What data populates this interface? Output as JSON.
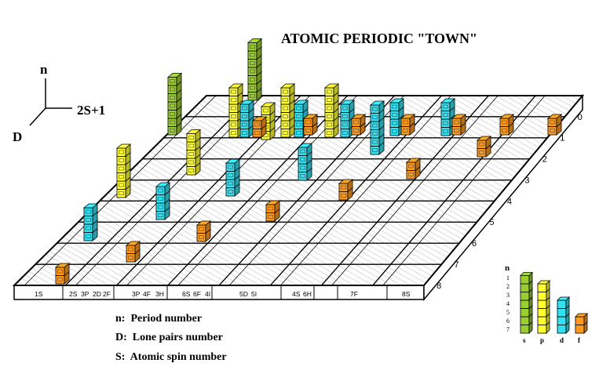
{
  "title": "ATOMIC PERIODIC \"TOWN\"",
  "axes": {
    "n": "n",
    "spin": "2S+1",
    "d": "D"
  },
  "row_numbers": [
    "0",
    "1",
    "2",
    "3",
    "4",
    "5",
    "6",
    "7",
    "8"
  ],
  "base_labels": [
    {
      "t": "1S"
    },
    {
      "t": "2S"
    },
    {
      "t": "3P"
    },
    {
      "t": "2D"
    },
    {
      "t": "2F"
    },
    {
      "t": "3P"
    },
    {
      "t": "4F"
    },
    {
      "t": "3H"
    },
    {
      "t": "6S"
    },
    {
      "t": "6F"
    },
    {
      "t": "4I"
    },
    {
      "t": "5D"
    },
    {
      "t": "5I"
    },
    {
      "t": "4S"
    },
    {
      "t": "6H"
    },
    {
      "t": "7F"
    },
    {
      "t": "8S"
    }
  ],
  "legend": {
    "n_label": "n",
    "numbers": [
      "1",
      "2",
      "3",
      "4",
      "5",
      "6",
      "7"
    ],
    "blocks": [
      {
        "label": "s",
        "color": "#9acd32",
        "cells": 7
      },
      {
        "label": "p",
        "color": "#ffff33",
        "cells": 6
      },
      {
        "label": "d",
        "color": "#33e0f0",
        "cells": 4
      },
      {
        "label": "f",
        "color": "#ff9a1a",
        "cells": 2
      }
    ]
  },
  "definitions": [
    {
      "text": "n:  Period number"
    },
    {
      "text": "D:  Lone pairs number"
    },
    {
      "text": "S:  Atomic spin number"
    }
  ],
  "colors": {
    "s": "#9acd32",
    "p": "#ffff33",
    "d": "#33e0f0",
    "f": "#ff9a1a"
  }
}
